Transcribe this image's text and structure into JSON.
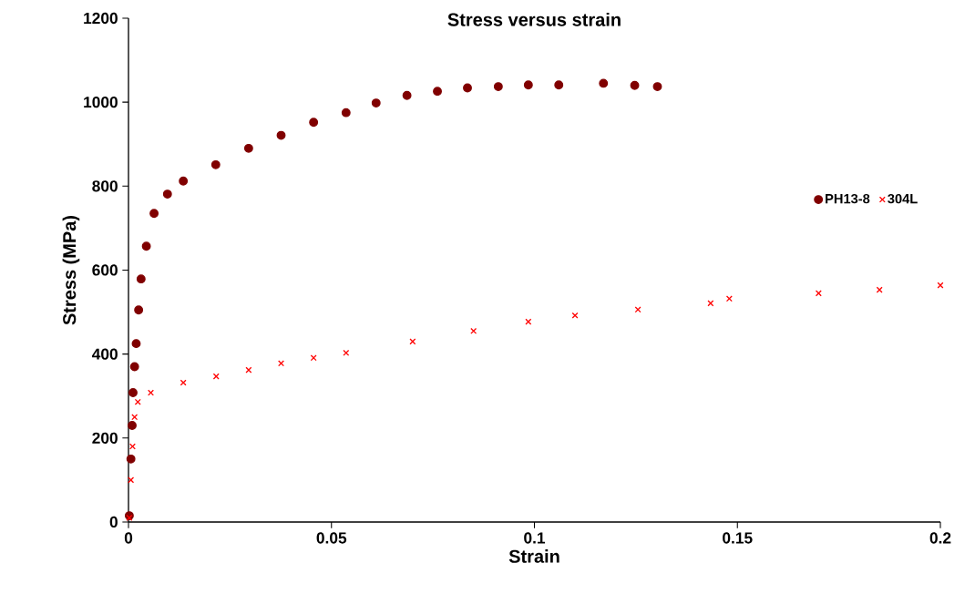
{
  "chart_data": {
    "type": "scatter",
    "title": "Stress versus strain",
    "xlabel": "Strain",
    "ylabel": "Stress (MPa)",
    "xlim": [
      0,
      0.2
    ],
    "ylim": [
      0,
      1200
    ],
    "xticks": [
      0,
      0.05,
      0.1,
      0.15,
      0.2
    ],
    "yticks": [
      0,
      200,
      400,
      600,
      800,
      1000,
      1200
    ],
    "grid": false,
    "legend": "right",
    "series": [
      {
        "name": "PH13-8",
        "color": "#800000",
        "marker": "circle",
        "x": [
          0.0002,
          0.0006,
          0.0009,
          0.00112,
          0.0015,
          0.0019,
          0.0025,
          0.0031,
          0.0044,
          0.0063,
          0.0096,
          0.0135,
          0.0215,
          0.0296,
          0.0376,
          0.0456,
          0.0536,
          0.061,
          0.0686,
          0.0761,
          0.0835,
          0.0911,
          0.0985,
          0.106,
          0.117,
          0.1247,
          0.1303
        ],
        "values": [
          15,
          150,
          230,
          308,
          370,
          425,
          505,
          579,
          657,
          735,
          781,
          812,
          851,
          890,
          921,
          952,
          975,
          998,
          1016,
          1026,
          1034,
          1037,
          1041,
          1041,
          1045,
          1040,
          1037
        ]
      },
      {
        "name": "304L",
        "color": "#ff0000",
        "marker": "cross",
        "x": [
          0.0002,
          0.0006,
          0.001,
          0.0015,
          0.0023,
          0.0055,
          0.0135,
          0.0216,
          0.0296,
          0.0376,
          0.0456,
          0.0536,
          0.07,
          0.085,
          0.0985,
          0.11,
          0.1255,
          0.1434,
          0.148,
          0.17,
          0.185,
          0.2
        ],
        "values": [
          10,
          100,
          180,
          250,
          286,
          308,
          332,
          347,
          362,
          378,
          391,
          403,
          430,
          455,
          477,
          492,
          506,
          521,
          532,
          545,
          553,
          564
        ]
      }
    ]
  }
}
